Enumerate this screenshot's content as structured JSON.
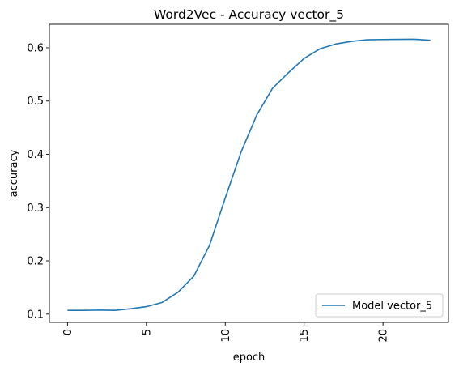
{
  "chart_data": {
    "type": "line",
    "title": "Word2Vec - Accuracy vector_5",
    "xlabel": "epoch",
    "ylabel": "accuracy",
    "xlim": [
      -1.15,
      24.15
    ],
    "ylim": [
      0.0845,
      0.644
    ],
    "xticks": [
      0,
      5,
      10,
      15,
      20
    ],
    "xtick_labels": [
      "0",
      "5",
      "10",
      "15",
      "20"
    ],
    "yticks": [
      0.1,
      0.2,
      0.3,
      0.4,
      0.5,
      0.6
    ],
    "ytick_labels": [
      "0.1",
      "0.2",
      "0.3",
      "0.4",
      "0.5",
      "0.6"
    ],
    "grid": false,
    "legend_position": "lower-right",
    "series": [
      {
        "name": "Model vector_5",
        "color": "#1f77b4",
        "x": [
          0,
          1,
          2,
          3,
          4,
          5,
          6,
          7,
          8,
          9,
          10,
          11,
          12,
          13,
          14,
          15,
          16,
          17,
          18,
          19,
          20,
          21,
          22,
          23
        ],
        "values": [
          0.107,
          0.107,
          0.1075,
          0.107,
          0.11,
          0.114,
          0.122,
          0.141,
          0.171,
          0.229,
          0.318,
          0.404,
          0.474,
          0.524,
          0.553,
          0.58,
          0.598,
          0.607,
          0.612,
          0.615,
          0.6155,
          0.6158,
          0.616,
          0.614
        ]
      }
    ]
  }
}
